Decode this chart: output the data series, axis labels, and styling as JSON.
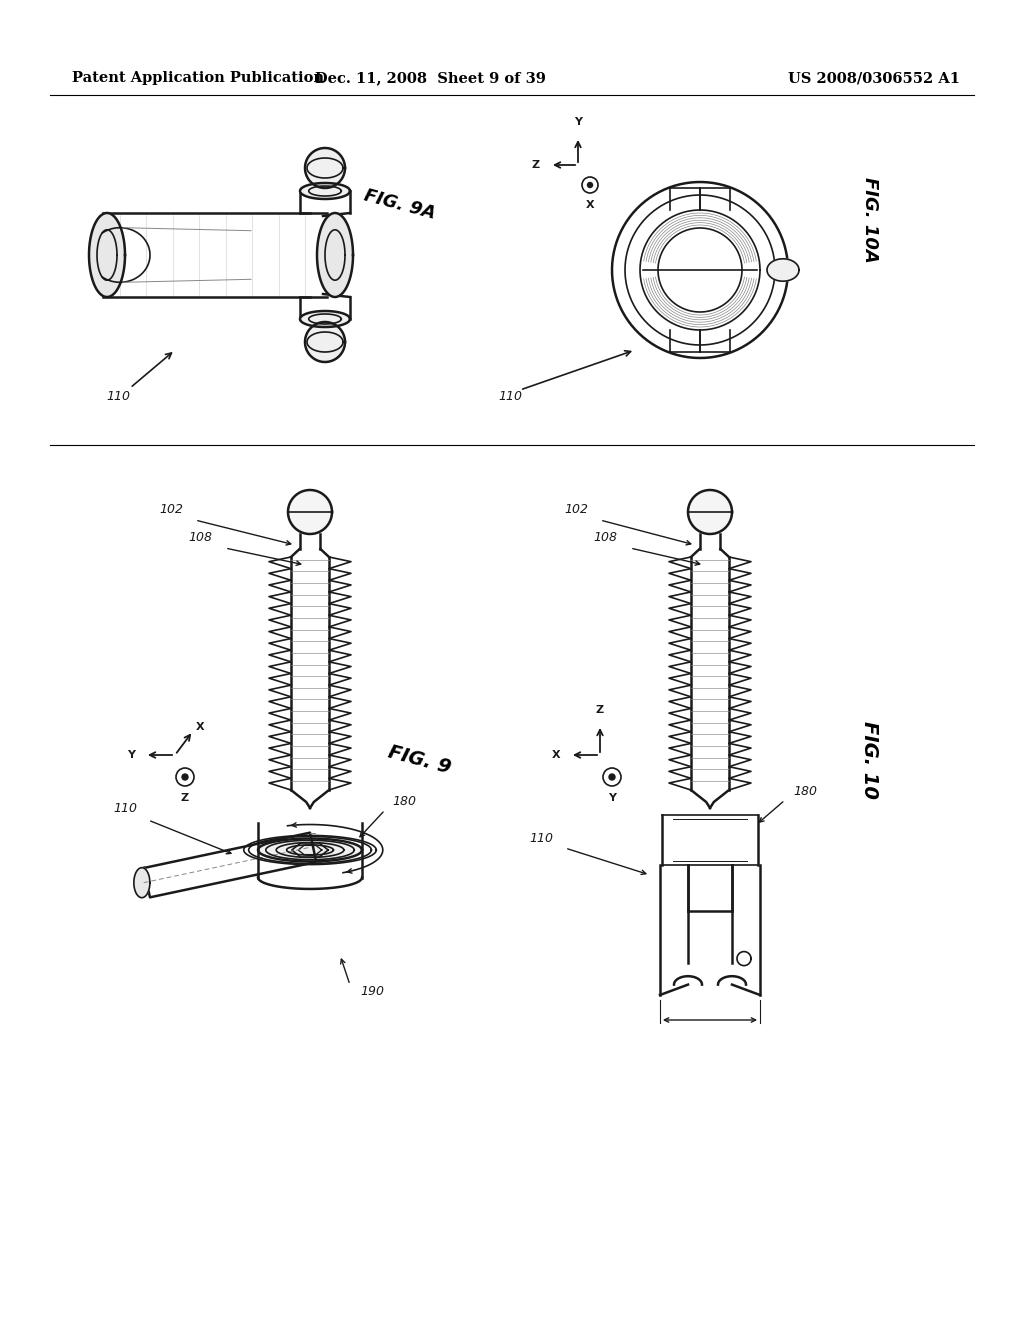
{
  "bg": "#ffffff",
  "header_left": "Patent Application Publication",
  "header_mid": "Dec. 11, 2008  Sheet 9 of 39",
  "header_right": "US 2008/0306552 A1",
  "fig_9a_label": "FIG. 9A",
  "fig_10a_label": "FIG. 10A",
  "fig_9_label": "FIG. 9",
  "fig_10_label": "FIG. 10",
  "ref_110": "110",
  "ref_102": "102",
  "ref_108": "108",
  "ref_180": "180",
  "ref_190": "190"
}
